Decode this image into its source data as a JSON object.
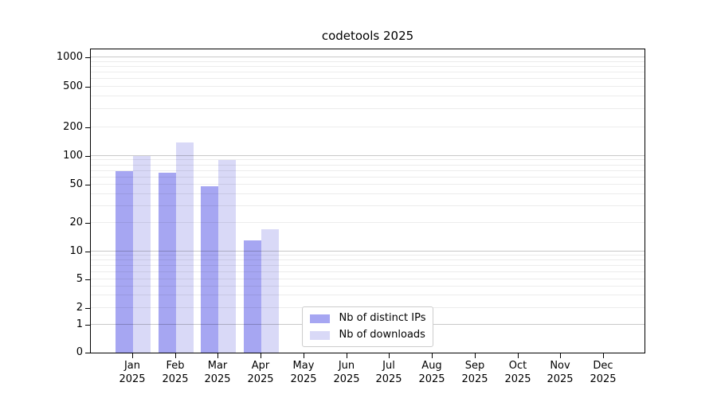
{
  "chart_data": {
    "type": "bar",
    "title": "codetools 2025",
    "categories": [
      "Jan",
      "Feb",
      "Mar",
      "Apr",
      "May",
      "Jun",
      "Jul",
      "Aug",
      "Sep",
      "Oct",
      "Nov",
      "Dec"
    ],
    "x_year": "2025",
    "series": [
      {
        "name": "Nb of distinct IPs",
        "color": "#a6a6f2",
        "values": [
          70,
          67,
          48,
          13,
          0,
          0,
          0,
          0,
          0,
          0,
          0,
          0
        ]
      },
      {
        "name": "Nb of downloads",
        "color": "#d9d9f7",
        "values": [
          100,
          140,
          90,
          17,
          0,
          0,
          0,
          0,
          0,
          0,
          0,
          0
        ]
      }
    ],
    "yticks": [
      0,
      1,
      2,
      5,
      10,
      20,
      50,
      100,
      200,
      500,
      1000
    ],
    "ylim": [
      0,
      1250
    ],
    "yscale": "log-like (symlog)",
    "xlabel": "",
    "ylabel": "",
    "grid": "horizontal, minor lines light gray, major lines at powers of 10 darker, drawn over bars",
    "legend_position": "lower center",
    "colors": {
      "axis": "#000000",
      "major_grid": "#c9c9c9",
      "minor_grid": "#ececec",
      "legend_border": "#cccccc",
      "background": "#ffffff"
    }
  }
}
